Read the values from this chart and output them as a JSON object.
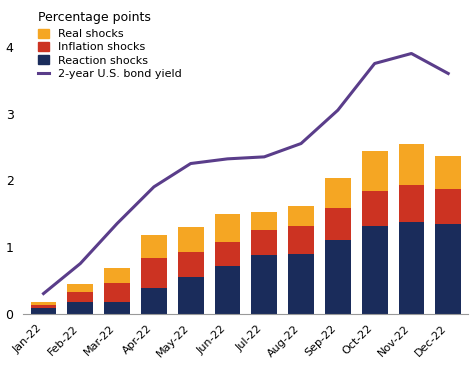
{
  "months": [
    "Jan-22",
    "Feb-22",
    "Mar-22",
    "Apr-22",
    "May-22",
    "Jun-22",
    "Jul-22",
    "Aug-22",
    "Sep-22",
    "Oct-22",
    "Nov-22",
    "Dec-22"
  ],
  "reaction_shocks": [
    0.08,
    0.18,
    0.18,
    0.38,
    0.55,
    0.72,
    0.88,
    0.9,
    1.1,
    1.32,
    1.38,
    1.35
  ],
  "inflation_shocks": [
    0.05,
    0.15,
    0.28,
    0.45,
    0.38,
    0.35,
    0.38,
    0.42,
    0.48,
    0.52,
    0.55,
    0.52
  ],
  "real_shocks": [
    0.05,
    0.12,
    0.22,
    0.35,
    0.37,
    0.43,
    0.27,
    0.3,
    0.45,
    0.6,
    0.62,
    0.5
  ],
  "bond_yield": [
    0.3,
    0.75,
    1.35,
    1.9,
    2.25,
    2.32,
    2.35,
    2.55,
    3.05,
    3.75,
    3.9,
    3.6
  ],
  "colors": {
    "reaction_shocks": "#1a2c5b",
    "inflation_shocks": "#cc3322",
    "real_shocks": "#f5a623",
    "bond_yield": "#5a3d8a"
  },
  "ylabel": "Percentage points",
  "ylim": [
    0,
    4.4
  ],
  "yticks": [
    0,
    1,
    2,
    3,
    4
  ],
  "background_color": "#ffffff"
}
